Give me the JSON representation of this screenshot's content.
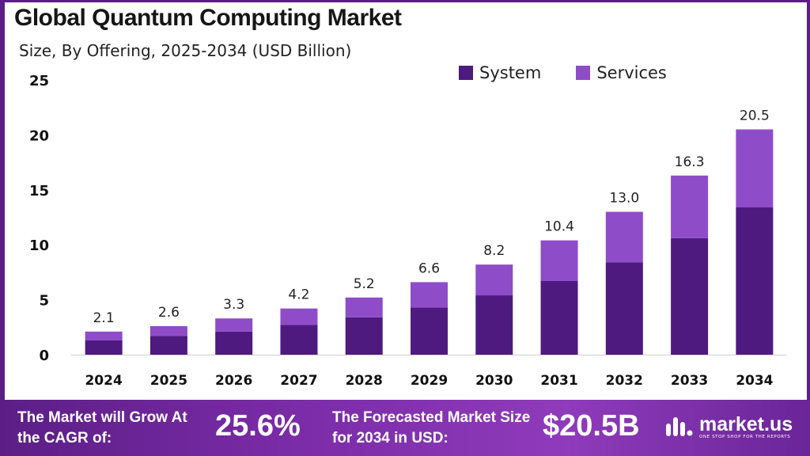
{
  "title": "Global Quantum Computing Market",
  "subtitle": "Size, By Offering, 2025-2034 (USD Billion)",
  "colors": {
    "system": "#4e1a80",
    "services": "#8e4cc9",
    "frame": "#5b1e86"
  },
  "chart_data": {
    "type": "bar",
    "stacked": true,
    "categories": [
      "2024",
      "2025",
      "2026",
      "2027",
      "2028",
      "2029",
      "2030",
      "2031",
      "2032",
      "2033",
      "2034"
    ],
    "series": [
      {
        "name": "System",
        "values": [
          1.3,
          1.7,
          2.1,
          2.7,
          3.4,
          4.3,
          5.4,
          6.7,
          8.4,
          10.6,
          13.4
        ]
      },
      {
        "name": "Services",
        "values": [
          0.8,
          0.9,
          1.2,
          1.5,
          1.8,
          2.3,
          2.8,
          3.7,
          4.6,
          5.7,
          7.1
        ]
      }
    ],
    "totals": [
      "2.1",
      "2.6",
      "3.3",
      "4.2",
      "5.2",
      "6.6",
      "8.2",
      "10.4",
      "13.0",
      "16.3",
      "20.5"
    ],
    "yticks": [
      "0",
      "5",
      "10",
      "15",
      "20",
      "25"
    ],
    "ylim": [
      0,
      25
    ],
    "grid": false,
    "legend_position": "top-right"
  },
  "footer": {
    "cagr_label": "The Market will Grow At the CAGR of:",
    "cagr_value": "25.6%",
    "forecast_label": "The Forecasted Market Size for 2034 in USD:",
    "forecast_value": "$20.5B",
    "brand": "market.us",
    "tagline": "ONE STOP SHOP FOR THE REPORTS"
  }
}
